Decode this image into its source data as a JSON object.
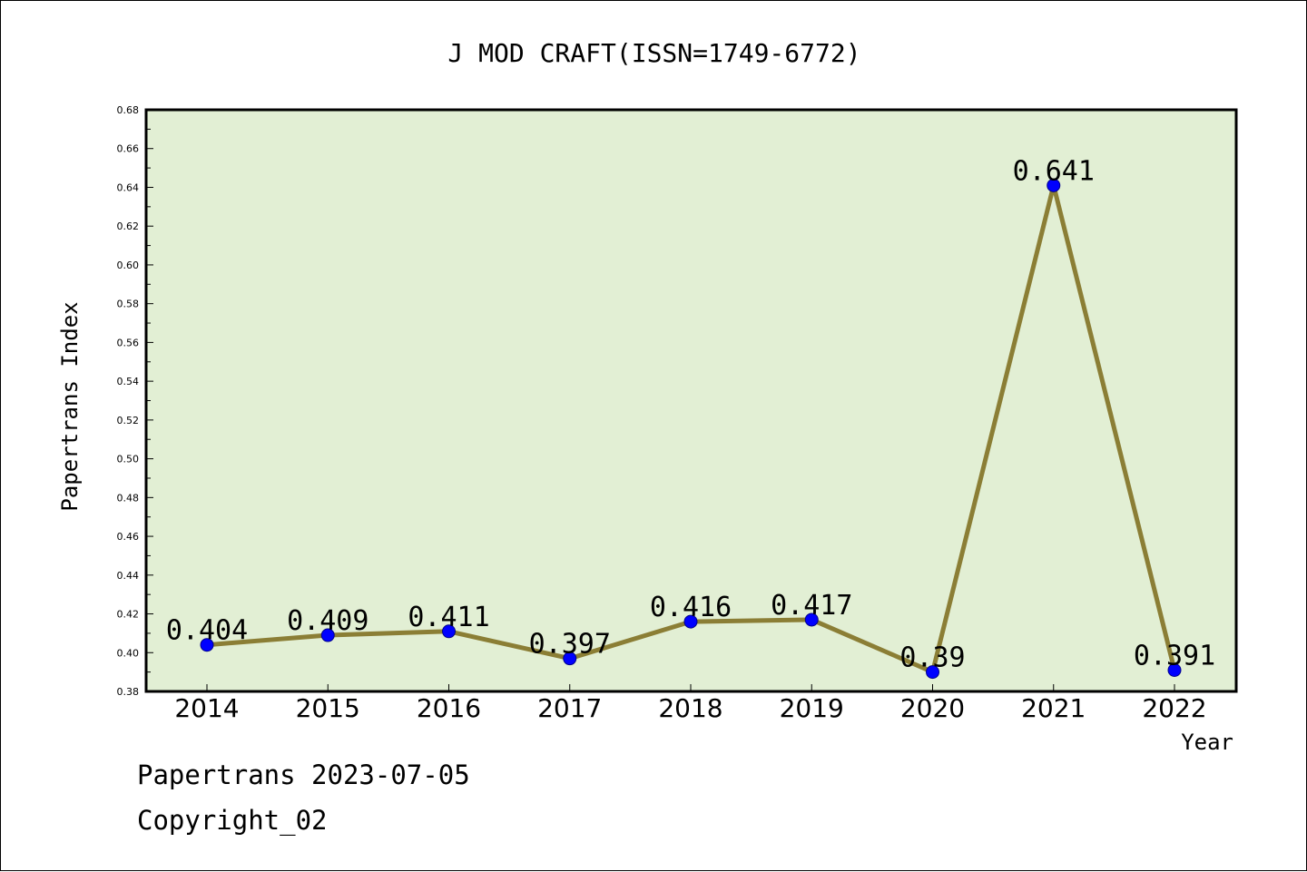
{
  "chart_data": {
    "type": "line",
    "title": "J MOD CRAFT(ISSN=1749-6772)",
    "xlabel": "Year",
    "ylabel": "Papertrans Index",
    "categories": [
      "2014",
      "2015",
      "2016",
      "2017",
      "2018",
      "2019",
      "2020",
      "2021",
      "2022"
    ],
    "series": [
      {
        "values": [
          0.404,
          0.409,
          0.411,
          0.397,
          0.416,
          0.417,
          0.39,
          0.641,
          0.391
        ]
      }
    ],
    "data_labels": [
      "0.404",
      "0.409",
      "0.411",
      "0.397",
      "0.416",
      "0.417",
      "0.39",
      "0.641",
      "0.391"
    ],
    "ylim": [
      0.38,
      0.68
    ],
    "yticks": [
      "0.38",
      "0.40",
      "0.42",
      "0.44",
      "0.46",
      "0.48",
      "0.50",
      "0.52",
      "0.54",
      "0.56",
      "0.58",
      "0.60",
      "0.62",
      "0.64",
      "0.66",
      "0.68"
    ],
    "grid": false,
    "colors": {
      "plot_background": "#e2efd4",
      "line": "#8b7e35",
      "marker": "#0000ff",
      "marker_edge": "#00008b"
    }
  },
  "footer": {
    "date_line": "Papertrans 2023-07-05",
    "copyright": "Copyright_02"
  }
}
